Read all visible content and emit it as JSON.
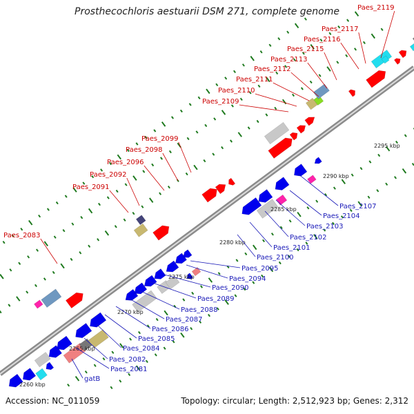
{
  "title": "Prosthecochloris aestuarii DSM 271, complete genome",
  "accession": "Accession: NC_011059",
  "topology": "Topology: circular; Length: 2,512,923 bp; Genes: 2,312",
  "colors": {
    "backbone": "#8c8c8c",
    "forward_label": "#cc0000",
    "reverse_label": "#1a1ab8",
    "tick": "#1f7a1f",
    "red": "#ff0000",
    "blue": "#0000ee",
    "gray": "#c8c8c8",
    "cyan": "#22ddee",
    "khaki": "#c8b870",
    "steel": "#6f98c0",
    "magenta": "#ff22aa",
    "salmon": "#f08080",
    "dark_gray": "#777777",
    "slate": "#44447a",
    "lime": "#88dd22"
  },
  "scale_labels": [
    "2260 kbp",
    "2265 kbp",
    "2270 kbp",
    "2275 kbp",
    "2280 kbp",
    "2285 kbp",
    "2290 kbp",
    "2295 kbp"
  ],
  "forward_genes": [
    "Paes_2083",
    "Paes_2091",
    "Paes_2092",
    "Paes_2096",
    "Paes_2098",
    "Paes_2099",
    "Paes_2109",
    "Paes_2110",
    "Paes_2111",
    "Paes_2112",
    "Paes_2113",
    "Paes_2115",
    "Paes_2116",
    "Paes_2117",
    "Paes_2119"
  ],
  "reverse_genes": [
    "gatB",
    "Paes_2081",
    "Paes_2082",
    "Paes_2084",
    "Paes_2085",
    "Paes_2086",
    "Paes_2087",
    "Paes_2088",
    "Paes_2089",
    "Paes_2090",
    "Paes_2094",
    "Paes_2095",
    "Paes_2100",
    "Paes_2101",
    "Paes_2102",
    "Paes_2103",
    "Paes_2104",
    "Paes_2107"
  ]
}
